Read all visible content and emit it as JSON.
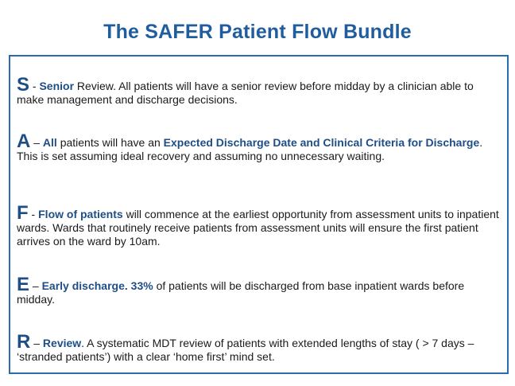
{
  "title": "The SAFER Patient Flow Bundle",
  "items": [
    {
      "letter": "S",
      "s1": " - ",
      "b1": "Senior",
      "s2": " Review. All patients will have a senior review before midday by a clinician able to make management and discharge decisions."
    },
    {
      "letter": "A",
      "s1": " – ",
      "b1": "All",
      "s2": " patients will have an ",
      "b2": "Expected Discharge Date and Clinical Criteria for Discharge",
      "s3": ". This is set assuming ideal recovery and assuming no unnecessary waiting."
    },
    {
      "letter": "F",
      "s1": " - ",
      "b1": "Flow of patients",
      "s2": " will commence at the earliest opportunity from assessment units to inpatient wards. Wards that routinely receive patients from assessment units will ensure the first patient arrives on the ward by 10am."
    },
    {
      "letter": "E",
      "s1": " – ",
      "b1": "Early discharge.",
      "s2": " ",
      "b2": "33%",
      "s3": " of patients will be discharged from base inpatient wards before midday."
    },
    {
      "letter": "R",
      "s1": " – ",
      "b1": "Review",
      "s2": ". A systematic MDT review of patients with extended lengths of stay ( > 7 days – ‘stranded patients’) with a clear ‘home first’ mind set."
    }
  ]
}
